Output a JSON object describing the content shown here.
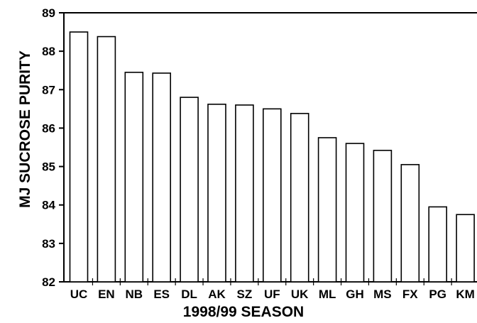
{
  "chart_data": {
    "type": "bar",
    "title": "",
    "xlabel": "1998/99 SEASON",
    "ylabel": "MJ SUCROSE PURITY",
    "categories": [
      "UC",
      "EN",
      "NB",
      "ES",
      "DL",
      "AK",
      "SZ",
      "UF",
      "UK",
      "ML",
      "GH",
      "MS",
      "FX",
      "PG",
      "KM"
    ],
    "values": [
      88.5,
      88.38,
      87.45,
      87.43,
      86.8,
      86.62,
      86.6,
      86.5,
      86.38,
      85.75,
      85.6,
      85.42,
      85.05,
      83.95,
      83.75
    ],
    "ylim": [
      82,
      89
    ],
    "yticks": [
      82,
      83,
      84,
      85,
      86,
      87,
      88,
      89
    ],
    "grid": false,
    "legend": "none",
    "bar_fill": "#ffffff",
    "bar_stroke": "#000000"
  }
}
